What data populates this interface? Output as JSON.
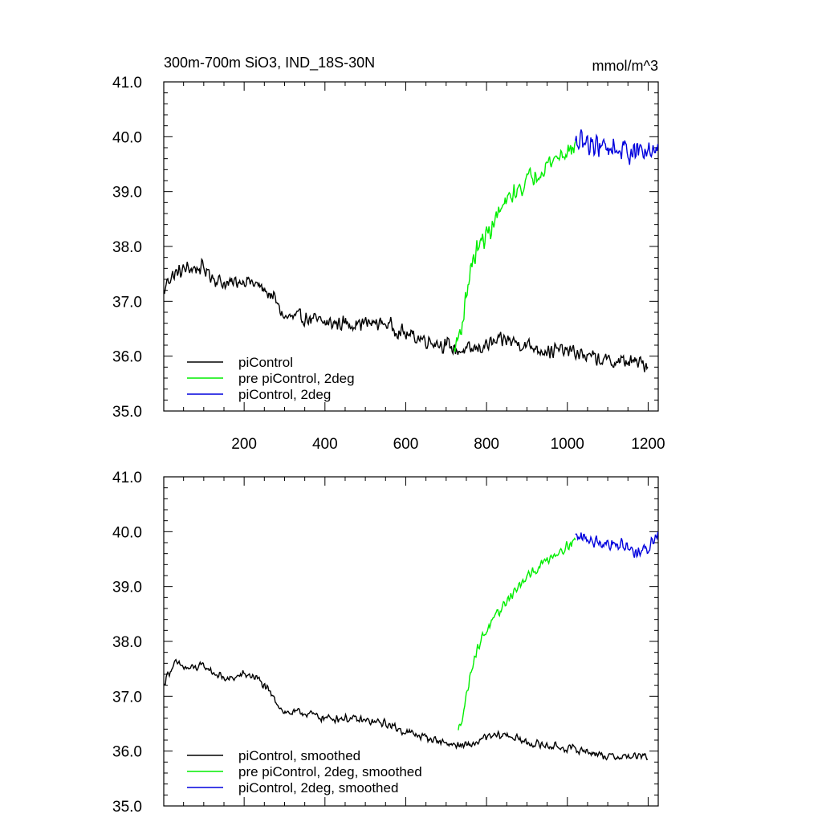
{
  "chart_data": [
    {
      "type": "line",
      "title": "300m-700m SiO3, IND_18S-30N",
      "units": "mmol/m^3",
      "xlabel": "",
      "ylabel": "",
      "xlim": [
        1,
        1225
      ],
      "ylim": [
        35.0,
        41.0
      ],
      "x_ticks": [
        200,
        400,
        600,
        800,
        1000,
        1200
      ],
      "x_tick_labels": [
        "200",
        "400",
        "600",
        "800",
        "1000",
        "1200"
      ],
      "y_ticks": [
        35,
        36,
        37,
        38,
        39,
        40,
        41
      ],
      "y_tick_labels": [
        "35.0",
        "36.0",
        "37.0",
        "38.0",
        "39.0",
        "40.0",
        "41.0"
      ],
      "legend_position": "bottom-left",
      "series": [
        {
          "name": "piControl",
          "color": "#000000",
          "noise": 0.17,
          "anchors": [
            [
              1,
              37.1
            ],
            [
              10,
              37.4
            ],
            [
              30,
              37.5
            ],
            [
              60,
              37.6
            ],
            [
              100,
              37.6
            ],
            [
              130,
              37.4
            ],
            [
              160,
              37.3
            ],
            [
              200,
              37.4
            ],
            [
              230,
              37.3
            ],
            [
              270,
              37.1
            ],
            [
              300,
              36.7
            ],
            [
              350,
              36.7
            ],
            [
              400,
              36.6
            ],
            [
              450,
              36.6
            ],
            [
              500,
              36.6
            ],
            [
              550,
              36.6
            ],
            [
              600,
              36.4
            ],
            [
              650,
              36.3
            ],
            [
              700,
              36.2
            ],
            [
              730,
              36.1
            ],
            [
              760,
              36.1
            ],
            [
              800,
              36.2
            ],
            [
              850,
              36.3
            ],
            [
              900,
              36.2
            ],
            [
              950,
              36.1
            ],
            [
              1000,
              36.1
            ],
            [
              1050,
              36.0
            ],
            [
              1100,
              35.9
            ],
            [
              1150,
              35.9
            ],
            [
              1200,
              35.85
            ]
          ]
        },
        {
          "name": "pre piControl, 2deg",
          "color": "#00ee00",
          "noise": 0.22,
          "anchors": [
            [
              720,
              36.1
            ],
            [
              740,
              36.6
            ],
            [
              760,
              37.6
            ],
            [
              780,
              38.0
            ],
            [
              800,
              38.2
            ],
            [
              830,
              38.6
            ],
            [
              860,
              38.9
            ],
            [
              900,
              39.2
            ],
            [
              950,
              39.5
            ],
            [
              990,
              39.7
            ],
            [
              1020,
              39.8
            ]
          ]
        },
        {
          "name": "piControl, 2deg",
          "color": "#0000dd",
          "noise": 0.28,
          "anchors": [
            [
              1020,
              39.85
            ],
            [
              1060,
              39.9
            ],
            [
              1100,
              39.8
            ],
            [
              1150,
              39.75
            ],
            [
              1200,
              39.7
            ],
            [
              1225,
              39.85
            ]
          ]
        }
      ]
    },
    {
      "type": "line",
      "title": "",
      "xlabel": "",
      "ylabel": "",
      "xlim": [
        1,
        1225
      ],
      "ylim": [
        35.0,
        41.0
      ],
      "x_ticks": [
        200,
        400,
        600,
        800,
        1000,
        1200
      ],
      "y_ticks": [
        35,
        36,
        37,
        38,
        39,
        40,
        41
      ],
      "y_tick_labels": [
        "35.0",
        "36.0",
        "37.0",
        "38.0",
        "39.0",
        "40.0",
        "41.0"
      ],
      "legend_position": "bottom-left",
      "series": [
        {
          "name": "piControl, smoothed",
          "color": "#000000",
          "noise": 0.09,
          "anchors": [
            [
              1,
              37.2
            ],
            [
              10,
              37.4
            ],
            [
              30,
              37.6
            ],
            [
              60,
              37.5
            ],
            [
              100,
              37.55
            ],
            [
              130,
              37.4
            ],
            [
              160,
              37.3
            ],
            [
              200,
              37.4
            ],
            [
              230,
              37.35
            ],
            [
              270,
              37.0
            ],
            [
              300,
              36.7
            ],
            [
              350,
              36.7
            ],
            [
              400,
              36.6
            ],
            [
              450,
              36.6
            ],
            [
              500,
              36.55
            ],
            [
              550,
              36.5
            ],
            [
              600,
              36.35
            ],
            [
              650,
              36.25
            ],
            [
              700,
              36.15
            ],
            [
              730,
              36.1
            ],
            [
              760,
              36.1
            ],
            [
              800,
              36.25
            ],
            [
              850,
              36.3
            ],
            [
              900,
              36.15
            ],
            [
              950,
              36.1
            ],
            [
              1000,
              36.05
            ],
            [
              1050,
              36.0
            ],
            [
              1100,
              35.9
            ],
            [
              1150,
              35.9
            ],
            [
              1200,
              35.9
            ]
          ]
        },
        {
          "name": "pre piControl, 2deg, smoothed",
          "color": "#00ee00",
          "noise": 0.11,
          "anchors": [
            [
              730,
              36.35
            ],
            [
              745,
              36.8
            ],
            [
              765,
              37.6
            ],
            [
              790,
              38.1
            ],
            [
              820,
              38.4
            ],
            [
              850,
              38.75
            ],
            [
              880,
              39.0
            ],
            [
              920,
              39.3
            ],
            [
              960,
              39.55
            ],
            [
              1000,
              39.75
            ],
            [
              1020,
              39.85
            ]
          ]
        },
        {
          "name": "piControl, 2deg, smoothed",
          "color": "#0000dd",
          "noise": 0.16,
          "anchors": [
            [
              1020,
              39.9
            ],
            [
              1060,
              39.85
            ],
            [
              1100,
              39.8
            ],
            [
              1140,
              39.75
            ],
            [
              1180,
              39.6
            ],
            [
              1200,
              39.7
            ],
            [
              1225,
              40.0
            ]
          ]
        }
      ]
    }
  ]
}
